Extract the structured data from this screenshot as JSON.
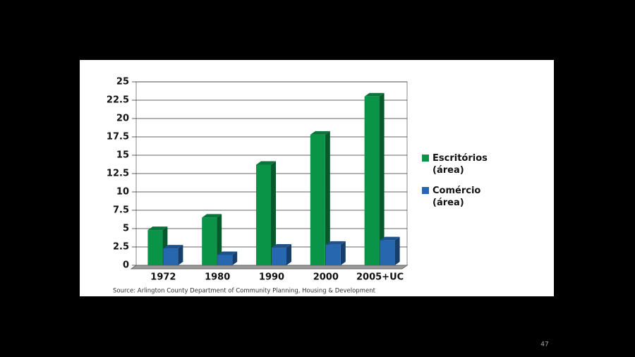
{
  "chart_data": {
    "type": "bar3d",
    "categories": [
      "1972",
      "1980",
      "1990",
      "2000",
      "2005+UC"
    ],
    "series": [
      {
        "name": "Escritórios (área)",
        "color": "#0a9448",
        "values": [
          4.8,
          6.5,
          13.7,
          17.8,
          23
        ]
      },
      {
        "name": "Comércio (área)",
        "color": "#2767b0",
        "values": [
          2.3,
          1.4,
          2.4,
          2.8,
          3.4
        ]
      }
    ],
    "ylim": [
      0,
      25
    ],
    "yticks": [
      0,
      2.5,
      5,
      7.5,
      10,
      12.5,
      15,
      17.5,
      20,
      22.5,
      25
    ],
    "grid": true,
    "source": "Source:   Arlington County Department of Community Planning, Housing & Development",
    "page_number": "47"
  }
}
